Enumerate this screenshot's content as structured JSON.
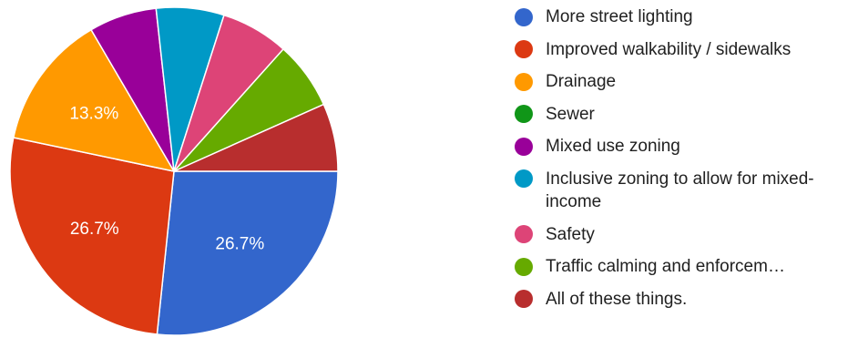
{
  "chart_data": {
    "type": "pie",
    "slices": [
      {
        "label": "More street lighting",
        "value": 26.7,
        "color": "#3366cc",
        "data_label": "26.7%"
      },
      {
        "label": "Improved walkability / sidewalks",
        "value": 26.7,
        "color": "#dc3912",
        "data_label": "26.7%"
      },
      {
        "label": "Drainage",
        "value": 13.3,
        "color": "#ff9900",
        "data_label": "13.3%"
      },
      {
        "label": "Sewer",
        "value": 0,
        "color": "#109618",
        "data_label": ""
      },
      {
        "label": "Mixed use zoning",
        "value": 6.7,
        "color": "#990099",
        "data_label": ""
      },
      {
        "label": "Inclusive zoning to allow for mixed-income",
        "value": 6.7,
        "color": "#0099c6",
        "data_label": ""
      },
      {
        "label": "Safety",
        "value": 6.7,
        "color": "#dd4477",
        "data_label": ""
      },
      {
        "label": "Traffic calming and enforcem…",
        "value": 6.7,
        "color": "#66aa00",
        "data_label": ""
      },
      {
        "label": "All of these things.",
        "value": 6.7,
        "color": "#b82e2e",
        "data_label": ""
      }
    ],
    "legend_position": "right",
    "start": "3 o'clock, clockwise"
  }
}
